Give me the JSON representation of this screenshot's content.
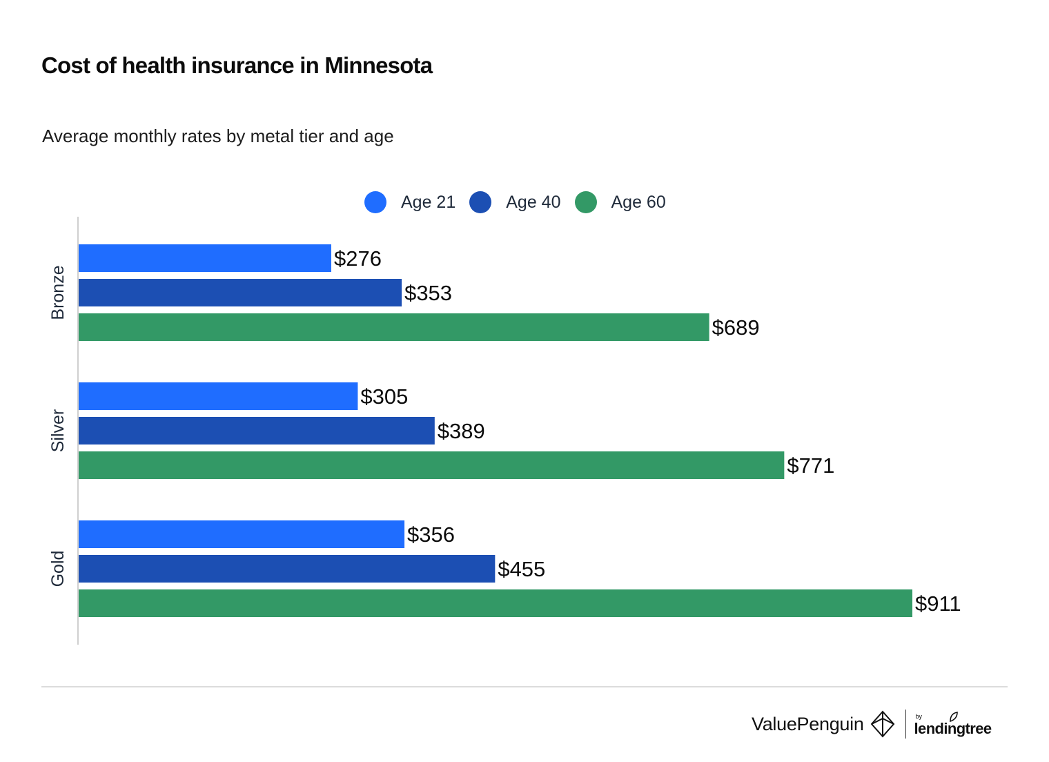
{
  "title": "Cost of health insurance in Minnesota",
  "subtitle": "Average monthly rates by metal tier and age",
  "legend": [
    {
      "label": "Age 21",
      "color": "#1f6dff"
    },
    {
      "label": "Age 40",
      "color": "#1c4fb3"
    },
    {
      "label": "Age 60",
      "color": "#339966"
    }
  ],
  "chart_data": {
    "type": "bar",
    "orientation": "horizontal",
    "categories": [
      "Bronze",
      "Silver",
      "Gold"
    ],
    "series": [
      {
        "name": "Age 21",
        "color": "#1f6dff",
        "values": [
          276,
          305,
          356
        ]
      },
      {
        "name": "Age 40",
        "color": "#1c4fb3",
        "values": [
          353,
          389,
          455
        ]
      },
      {
        "name": "Age 60",
        "color": "#339966",
        "values": [
          689,
          771,
          911
        ]
      }
    ],
    "value_prefix": "$",
    "xlim": [
      0,
      911
    ],
    "grid": false,
    "legend_position": "top-center",
    "data_labels": true
  },
  "branding": {
    "brand_name": "ValuePenguin",
    "by_label": "by",
    "partner_name": "lendingtree",
    "icon": "valuepenguin-logo-icon"
  }
}
